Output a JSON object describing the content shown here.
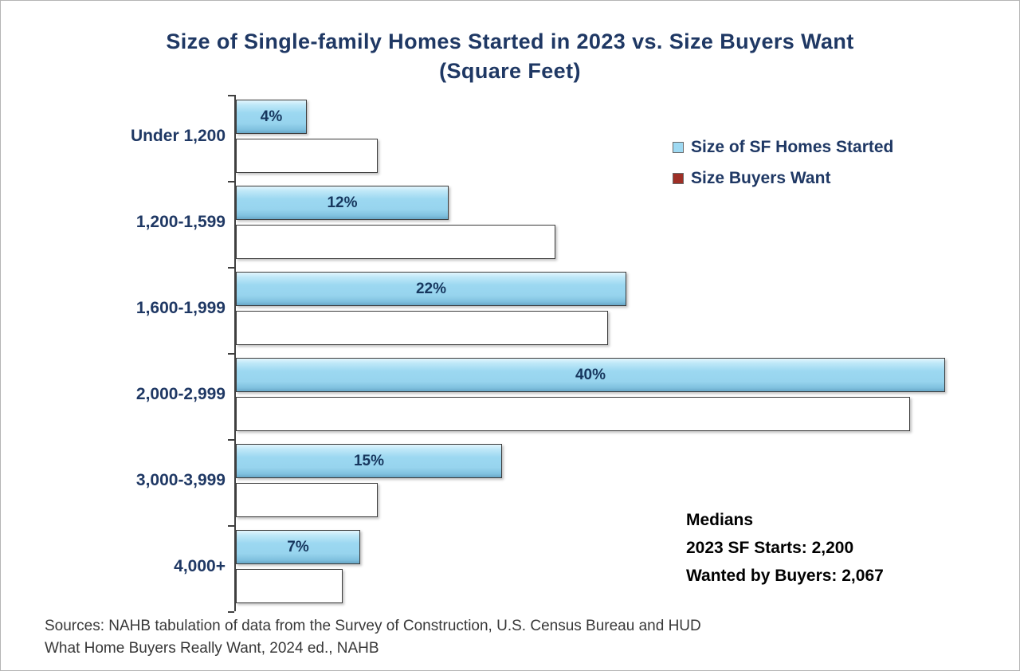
{
  "title": {
    "line1": "Size of Single-family Homes Started in 2023 vs. Size Buyers Want",
    "line2": "(Square Feet)"
  },
  "medians": {
    "heading": "Medians",
    "line1": "2023 SF Starts: 2,200",
    "line2": "Wanted by Buyers: 2,067"
  },
  "source": {
    "line1": "Sources: NAHB tabulation of data from the Survey of Construction, U.S. Census Bureau and HUD",
    "line2": "What Home Buyers Really Want, 2024 ed., NAHB"
  },
  "chart_data": {
    "type": "bar",
    "orientation": "horizontal",
    "title": "Size of Single-family Homes Started in 2023 vs. Size Buyers Want (Square Feet)",
    "categories": [
      "Under 1,200",
      "1,200-1,599",
      "1,600-1,999",
      "2,000-2,999",
      "3,000-3,999",
      "4,000+"
    ],
    "series": [
      {
        "name": "Size of SF Homes Started",
        "color": "#9ED9F2",
        "values": [
          4,
          12,
          22,
          40,
          15,
          7
        ]
      },
      {
        "name": "Size Buyers Want",
        "color": "#9E2F26",
        "values": [
          8,
          18,
          21,
          38,
          8,
          6
        ]
      }
    ],
    "value_suffix": "%",
    "xlim": [
      0,
      40
    ],
    "grid": false,
    "legend_position": "top-right"
  }
}
